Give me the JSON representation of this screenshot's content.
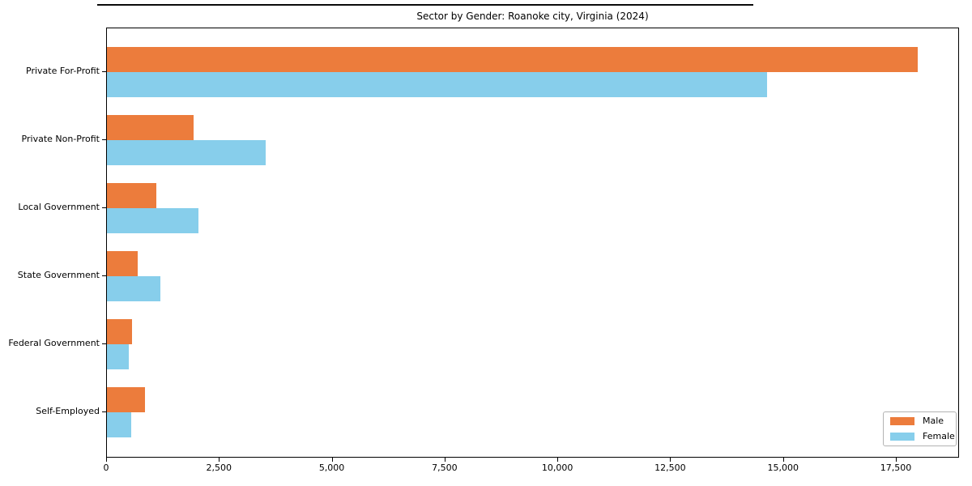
{
  "colors": {
    "male": "#ec7c3c",
    "female": "#87ceeb",
    "axis": "#000000",
    "legend_border": "#b3b3b3",
    "background": "#ffffff"
  },
  "chart_data": {
    "type": "bar",
    "orientation": "horizontal",
    "title": "Sector by Gender: Roanoke city, Virginia (2024)",
    "categories": [
      "Private For-Profit",
      "Private Non-Profit",
      "Local Government",
      "State Government",
      "Federal Government",
      "Self-Employed"
    ],
    "series": [
      {
        "name": "Male",
        "color": "#ec7c3c",
        "values": [
          18000,
          1920,
          1090,
          680,
          560,
          840
        ]
      },
      {
        "name": "Female",
        "color": "#87ceeb",
        "values": [
          14650,
          3530,
          2040,
          1180,
          480,
          540
        ]
      }
    ],
    "xlabel": "",
    "ylabel": "",
    "xlim": [
      0,
      18900
    ],
    "xticks": [
      0,
      2500,
      5000,
      7500,
      10000,
      12500,
      15000,
      17500
    ],
    "xtick_labels": [
      "0",
      "2,500",
      "5,000",
      "7,500",
      "10,000",
      "12,500",
      "15,000",
      "17,500"
    ],
    "grid": false,
    "legend_position": "lower right"
  }
}
